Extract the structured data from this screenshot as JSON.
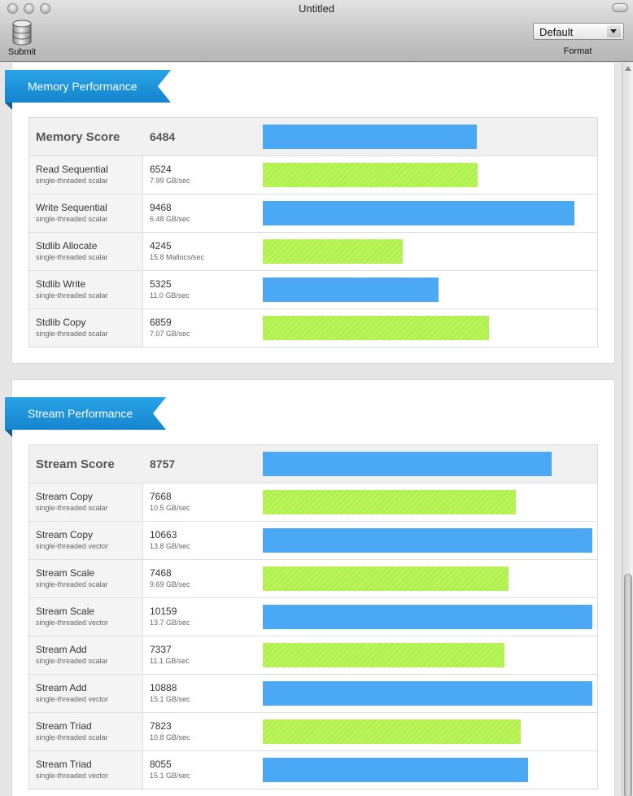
{
  "window": {
    "title": "Untitled"
  },
  "toolbar": {
    "submit_label": "Submit",
    "submit_icon": "database-icon",
    "format_label": "Format",
    "format_value": "Default"
  },
  "colors": {
    "ribbon": "#1f95dd",
    "bar_blue": "#4aa8f5",
    "bar_green": "#b9f55a"
  },
  "memory": {
    "section_title": "Memory Performance",
    "header": {
      "name": "Memory Score",
      "score": "6484"
    },
    "rows": [
      {
        "name": "Read Sequential",
        "sub": "single-threaded scalar",
        "score": "6524",
        "rate": "7.99 GB/sec"
      },
      {
        "name": "Write Sequential",
        "sub": "single-threaded scalar",
        "score": "9468",
        "rate": "6.48 GB/sec"
      },
      {
        "name": "Stdlib Allocate",
        "sub": "single-threaded scalar",
        "score": "4245",
        "rate": "15.8 Mallocs/sec"
      },
      {
        "name": "Stdlib Write",
        "sub": "single-threaded scalar",
        "score": "5325",
        "rate": "11.0 GB/sec"
      },
      {
        "name": "Stdlib Copy",
        "sub": "single-threaded scalar",
        "score": "6859",
        "rate": "7.07 GB/sec"
      }
    ]
  },
  "stream": {
    "section_title": "Stream Performance",
    "header": {
      "name": "Stream Score",
      "score": "8757"
    },
    "rows": [
      {
        "name": "Stream Copy",
        "sub": "single-threaded scalar",
        "score": "7668",
        "rate": "10.5 GB/sec"
      },
      {
        "name": "Stream Copy",
        "sub": "single-threaded vector",
        "score": "10663",
        "rate": "13.8 GB/sec"
      },
      {
        "name": "Stream Scale",
        "sub": "single-threaded scalar",
        "score": "7468",
        "rate": "9.69 GB/sec"
      },
      {
        "name": "Stream Scale",
        "sub": "single-threaded vector",
        "score": "10159",
        "rate": "13.7 GB/sec"
      },
      {
        "name": "Stream Add",
        "sub": "single-threaded scalar",
        "score": "7337",
        "rate": "11.1 GB/sec"
      },
      {
        "name": "Stream Add",
        "sub": "single-threaded vector",
        "score": "10888",
        "rate": "15.1 GB/sec"
      },
      {
        "name": "Stream Triad",
        "sub": "single-threaded scalar",
        "score": "7823",
        "rate": "10.8 GB/sec"
      },
      {
        "name": "Stream Triad",
        "sub": "single-threaded vector",
        "score": "8055",
        "rate": "15.1 GB/sec"
      }
    ]
  },
  "bar_scale_max": 10000
}
